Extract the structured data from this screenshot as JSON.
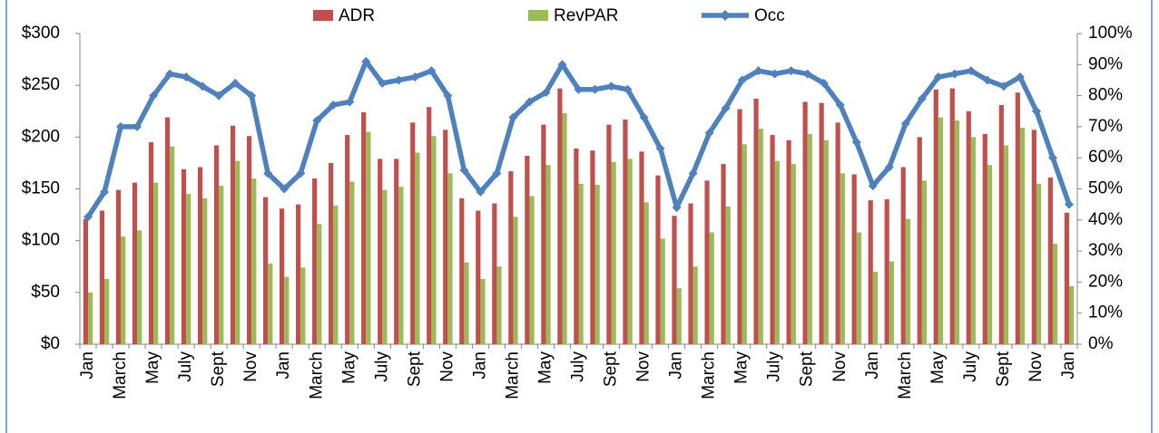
{
  "chart_data": {
    "type": "bar_line",
    "categories": [
      "Jan",
      null,
      "March",
      null,
      "May",
      null,
      "July",
      null,
      "Sept",
      null,
      "Nov",
      null,
      "Jan",
      null,
      "March",
      null,
      "May",
      null,
      "July",
      null,
      "Sept",
      null,
      "Nov",
      null,
      "Jan",
      null,
      "March",
      null,
      "May",
      null,
      "July",
      null,
      "Sept",
      null,
      "Nov",
      null,
      "Jan",
      null,
      "March",
      null,
      "May",
      null,
      "July",
      null,
      "Sept",
      null,
      "Nov",
      null,
      "Jan",
      null,
      "March",
      null,
      "May",
      null,
      "July",
      null,
      "Sept",
      null,
      "Nov",
      null,
      "Jan"
    ],
    "series": [
      {
        "name": "ADR",
        "type": "bar",
        "color": "#c0504d",
        "values": [
          121,
          129,
          149,
          156,
          195,
          219,
          169,
          171,
          192,
          211,
          201,
          142,
          131,
          135,
          160,
          175,
          202,
          224,
          179,
          179,
          214,
          229,
          207,
          141,
          129,
          136,
          167,
          182,
          212,
          247,
          189,
          187,
          212,
          217,
          186,
          163,
          124,
          136,
          158,
          174,
          227,
          237,
          202,
          197,
          234,
          233,
          214,
          164,
          139,
          140,
          171,
          200,
          246,
          247,
          225,
          203,
          231,
          243,
          207,
          161,
          127
        ]
      },
      {
        "name": "RevPAR",
        "type": "bar",
        "color": "#9bbb59",
        "values": [
          50,
          63,
          104,
          110,
          156,
          191,
          145,
          141,
          153,
          177,
          160,
          78,
          65,
          74,
          116,
          134,
          157,
          205,
          149,
          152,
          185,
          201,
          165,
          79,
          63,
          75,
          123,
          143,
          173,
          223,
          155,
          154,
          176,
          179,
          137,
          102,
          54,
          75,
          108,
          133,
          193,
          208,
          177,
          174,
          203,
          197,
          165,
          108,
          70,
          80,
          121,
          158,
          219,
          216,
          200,
          173,
          192,
          209,
          155,
          97,
          56
        ]
      },
      {
        "name": "Occ",
        "type": "line",
        "axis": "y2",
        "color": "#4f81bd",
        "values": [
          41,
          49,
          70,
          70,
          80,
          87,
          86,
          83,
          80,
          84,
          80,
          55,
          50,
          55,
          72,
          77,
          78,
          91,
          84,
          85,
          86,
          88,
          80,
          56,
          49,
          55,
          73,
          78,
          81,
          90,
          82,
          82,
          83,
          82,
          73,
          63,
          44,
          55,
          68,
          76,
          85,
          88,
          87,
          88,
          87,
          84,
          77,
          65,
          51,
          57,
          71,
          79,
          86,
          87,
          88,
          85,
          83,
          86,
          75,
          60,
          45
        ]
      }
    ],
    "ylim": [
      0,
      300
    ],
    "yticks": [
      {
        "value": 0,
        "label": "$0"
      },
      {
        "value": 50,
        "label": "$50"
      },
      {
        "value": 100,
        "label": "$100"
      },
      {
        "value": 150,
        "label": "$150"
      },
      {
        "value": 200,
        "label": "$200"
      },
      {
        "value": 250,
        "label": "$250"
      },
      {
        "value": 300,
        "label": "$300"
      }
    ],
    "y2lim": [
      0,
      100
    ],
    "y2ticks": [
      {
        "value": 0,
        "label": "0%"
      },
      {
        "value": 10,
        "label": "10%"
      },
      {
        "value": 20,
        "label": "20%"
      },
      {
        "value": 30,
        "label": "30%"
      },
      {
        "value": 40,
        "label": "40%"
      },
      {
        "value": 50,
        "label": "50%"
      },
      {
        "value": 60,
        "label": "60%"
      },
      {
        "value": 70,
        "label": "70%"
      },
      {
        "value": 80,
        "label": "80%"
      },
      {
        "value": 90,
        "label": "90%"
      },
      {
        "value": 100,
        "label": "100%"
      }
    ],
    "grid": false,
    "legend": "top"
  }
}
